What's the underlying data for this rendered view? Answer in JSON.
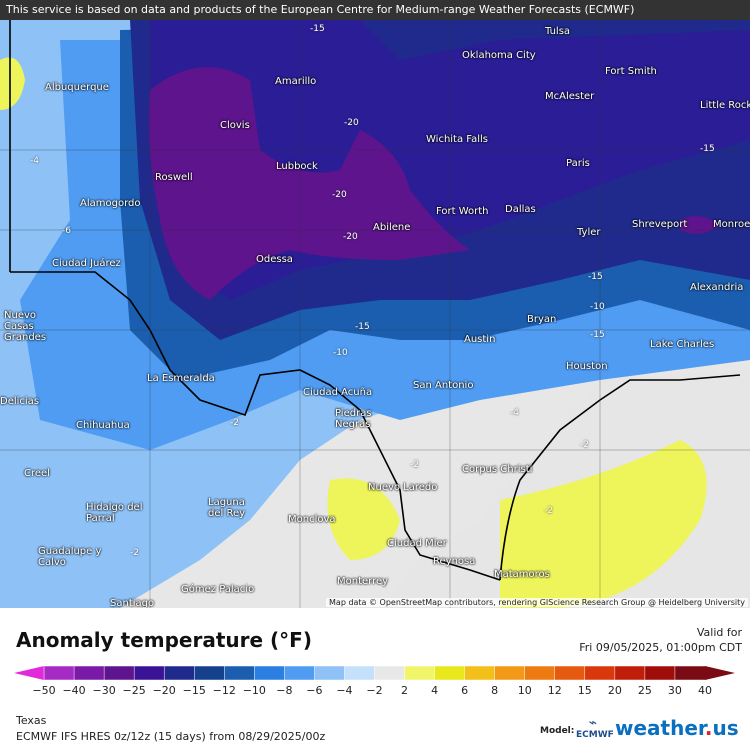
{
  "map": {
    "notice": "This service is based on data and products of the European Centre for Medium-range Weather Forecasts (ECMWF)",
    "attribution": "Map data © OpenStreetMap contributors, rendering GIScience Research Group @ Heidelberg University",
    "cities": [
      "Tulsa",
      "Oklahoma City",
      "Albuquerque",
      "Amarillo",
      "Fort Smith",
      "McAlester",
      "Little Rock",
      "Clovis",
      "Wichita Falls",
      "Lubbock",
      "Roswell",
      "Paris",
      "Alamogordo",
      "Fort Worth",
      "Dallas",
      "Abilene",
      "Shreveport",
      "Monroe",
      "Tyler",
      "Ciudad Juárez",
      "Odessa",
      "Alexandria",
      "Nuevo Casas Grandes",
      "Bryan",
      "Austin",
      "Lake Charles",
      "La Esmeralda",
      "Ciudad Acuña",
      "San Antonio",
      "Houston",
      "Chihuahua",
      "Piedras Negras",
      "Delicias",
      "Corpus Christi",
      "Creel",
      "Nuevo Laredo",
      "Hidalgo del Parral",
      "Laguna del Rey",
      "Monclova",
      "Ciudad Mier",
      "Guadalupe y Calvo",
      "Reynosa",
      "Matamoros",
      "Monterrey",
      "Gómez Palacio",
      "Santiago"
    ],
    "contour_labels": [
      "-15",
      "-20",
      "-20",
      "-15",
      "-6",
      "-4",
      "-15",
      "-10",
      "-4",
      "-2",
      "-2",
      "-2",
      "-15",
      "-20",
      "-10",
      "-15",
      "-2",
      "-2"
    ]
  },
  "legend": {
    "title": "Anomaly temperature (°F)",
    "valid_label": "Valid for",
    "valid_time": "Fri 09/05/2025, 01:00pm CDT",
    "region": "Texas",
    "run_info": "ECMWF IFS HRES 0z/12z (15 days) from 08/29/2025/00z",
    "model_label": "Model:",
    "model_logo": "ECMWF",
    "brand": "weather",
    "brand_dot": ".",
    "brand_tld": "us",
    "scale": [
      {
        "label": "−50",
        "color": "#e22ad8"
      },
      {
        "label": "−40",
        "color": "#a62ac4"
      },
      {
        "label": "−30",
        "color": "#7a1aa8"
      },
      {
        "label": "−25",
        "color": "#5d148c"
      },
      {
        "label": "−20",
        "color": "#3a1296"
      },
      {
        "label": "−15",
        "color": "#1f2a8c"
      },
      {
        "label": "−12",
        "color": "#14408c"
      },
      {
        "label": "−10",
        "color": "#1b5eb0"
      },
      {
        "label": "−8",
        "color": "#2b7fe0"
      },
      {
        "label": "−6",
        "color": "#4f9cf2"
      },
      {
        "label": "−4",
        "color": "#8ec2f7"
      },
      {
        "label": "−2",
        "color": "#c5e0fb"
      },
      {
        "label": "2",
        "color": "#e8e8e8"
      },
      {
        "label": "4",
        "color": "#f0f56a"
      },
      {
        "label": "6",
        "color": "#e8e81c"
      },
      {
        "label": "8",
        "color": "#f2c018"
      },
      {
        "label": "10",
        "color": "#f29a18"
      },
      {
        "label": "12",
        "color": "#ee7a12"
      },
      {
        "label": "15",
        "color": "#e65a10"
      },
      {
        "label": "20",
        "color": "#d8380c"
      },
      {
        "label": "25",
        "color": "#c01e0a"
      },
      {
        "label": "30",
        "color": "#a00c0a"
      },
      {
        "label": "40",
        "color": "#7a0a14"
      }
    ]
  }
}
